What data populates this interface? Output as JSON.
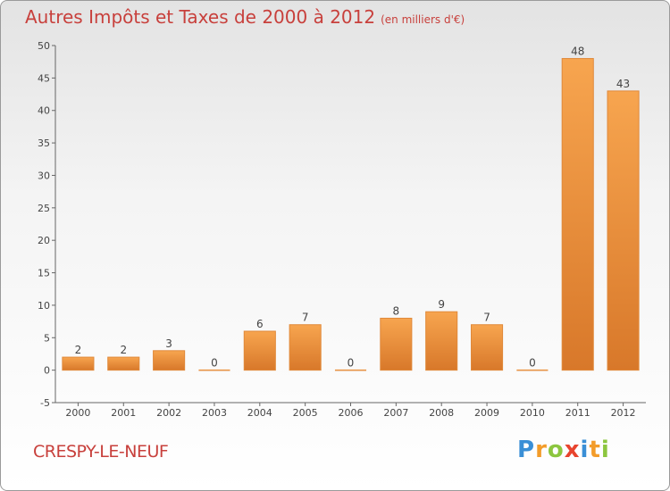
{
  "header": {
    "title": "Autres Impôts et Taxes de 2000 à 2012",
    "subtitle": "(en milliers d'€)"
  },
  "footer": {
    "town": "CRESPY-LE-NEUF",
    "brand": "Proxiti",
    "brand_letters": [
      {
        "ch": "P",
        "color": "#3a8fd6"
      },
      {
        "ch": "r",
        "color": "#f39c2a"
      },
      {
        "ch": "o",
        "color": "#8cc63f"
      },
      {
        "ch": "x",
        "color": "#e8442e"
      },
      {
        "ch": "i",
        "color": "#3a8fd6"
      },
      {
        "ch": "t",
        "color": "#f39c2a"
      },
      {
        "ch": "i",
        "color": "#8cc63f"
      }
    ]
  },
  "colors": {
    "title": "#c8403c",
    "bar_light": "#f7a54f",
    "bar_dark": "#d8782a"
  },
  "chart_data": {
    "type": "bar",
    "title": "Autres Impôts et Taxes de 2000 à 2012",
    "subtitle": "(en milliers d'€)",
    "categories": [
      "2000",
      "2001",
      "2002",
      "2003",
      "2004",
      "2005",
      "2006",
      "2007",
      "2008",
      "2009",
      "2010",
      "2011",
      "2012"
    ],
    "values": [
      2,
      2,
      3,
      0,
      6,
      7,
      0,
      8,
      9,
      7,
      0,
      48,
      43
    ],
    "data_labels": [
      "2",
      "2",
      "3",
      "0",
      "6",
      "7",
      "0",
      "8",
      "9",
      "7",
      "0",
      "48",
      "43"
    ],
    "ylim": [
      -5,
      50
    ],
    "yticks": [
      -5,
      0,
      5,
      10,
      15,
      20,
      25,
      30,
      35,
      40,
      45,
      50
    ],
    "ytick_labels": [
      "-5",
      "0",
      "5",
      "10",
      "15",
      "20",
      "25",
      "30",
      "35",
      "40",
      "45",
      "50"
    ],
    "grid": false,
    "xlabel": "",
    "ylabel": ""
  }
}
